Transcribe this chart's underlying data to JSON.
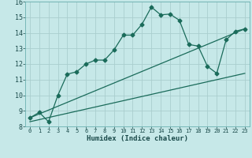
{
  "xlabel": "Humidex (Indice chaleur)",
  "background_color": "#c6e8e8",
  "grid_color": "#aacece",
  "line_color": "#1a6b5a",
  "xlim": [
    -0.5,
    23.5
  ],
  "ylim": [
    8,
    16
  ],
  "xticks": [
    0,
    1,
    2,
    3,
    4,
    5,
    6,
    7,
    8,
    9,
    10,
    11,
    12,
    13,
    14,
    15,
    16,
    17,
    18,
    19,
    20,
    21,
    22,
    23
  ],
  "yticks": [
    8,
    9,
    10,
    11,
    12,
    13,
    14,
    15,
    16
  ],
  "line1_x": [
    0,
    1,
    2,
    3,
    4,
    5,
    6,
    7,
    8,
    9,
    10,
    11,
    12,
    13,
    14,
    15,
    16,
    17,
    18,
    19,
    20,
    21,
    22,
    23
  ],
  "line1_y": [
    8.55,
    8.9,
    8.3,
    10.0,
    11.35,
    11.5,
    12.0,
    12.25,
    12.25,
    12.9,
    13.85,
    13.85,
    14.55,
    15.65,
    15.15,
    15.2,
    14.8,
    13.25,
    13.15,
    11.85,
    11.4,
    13.55,
    14.1,
    14.25
  ],
  "line2_x": [
    0,
    23
  ],
  "line2_y": [
    8.55,
    14.25
  ],
  "line3_x": [
    0,
    23
  ],
  "line3_y": [
    8.3,
    11.4
  ],
  "marker": "D",
  "markersize": 2.5,
  "linewidth": 0.9
}
